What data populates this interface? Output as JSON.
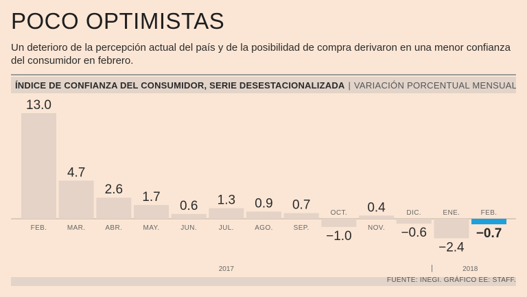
{
  "title": "POCO OPTIMISTAS",
  "subtitle": "Un deterioro de la percepción actual del país y de la posibilidad de compra derivaron en una menor confianza del consumidor en febrero.",
  "header": {
    "bold": "ÍNDICE DE CONFIANZA DEL CONSUMIDOR, SERIE DESESTACIONALIZADA",
    "separator": "|",
    "light": "VARIACIÓN PORCENTUAL MENSUAL"
  },
  "source": "FUENTE: INEGI. GRÁFICO EE: STAFF.",
  "colors": {
    "bar": "#e4d3c6",
    "highlight": "#1ea0dc",
    "background": "#fbe6d5"
  },
  "chart_data": {
    "type": "bar",
    "title": "ÍNDICE DE CONFIANZA DEL CONSUMIDOR, SERIE DESESTACIONALIZADA",
    "ylabel": "VARIACIÓN PORCENTUAL MENSUAL",
    "xlabel": "",
    "categories": [
      "FEB.",
      "MAR.",
      "ABR.",
      "MAY.",
      "JUN.",
      "JUL.",
      "AGO.",
      "SEP.",
      "OCT.",
      "NOV.",
      "DIC.",
      "ENE.",
      "FEB."
    ],
    "values": [
      13.0,
      4.7,
      2.6,
      1.7,
      0.6,
      1.3,
      0.9,
      0.7,
      -1.0,
      0.4,
      -0.6,
      -2.4,
      -0.7
    ],
    "value_labels": [
      "13.0",
      "4.7",
      "2.6",
      "1.7",
      "0.6",
      "1.3",
      "0.9",
      "0.7",
      "−1.0",
      "0.4",
      "−0.6",
      "−2.4",
      "−0.7"
    ],
    "highlight_index": 12,
    "year_labels": [
      {
        "label": "2017",
        "from_index": 0,
        "to_index": 10
      },
      {
        "label": "2018",
        "from_index": 11,
        "to_index": 12
      }
    ],
    "year_separator": "|",
    "ylim": [
      -2.4,
      13.0
    ]
  }
}
